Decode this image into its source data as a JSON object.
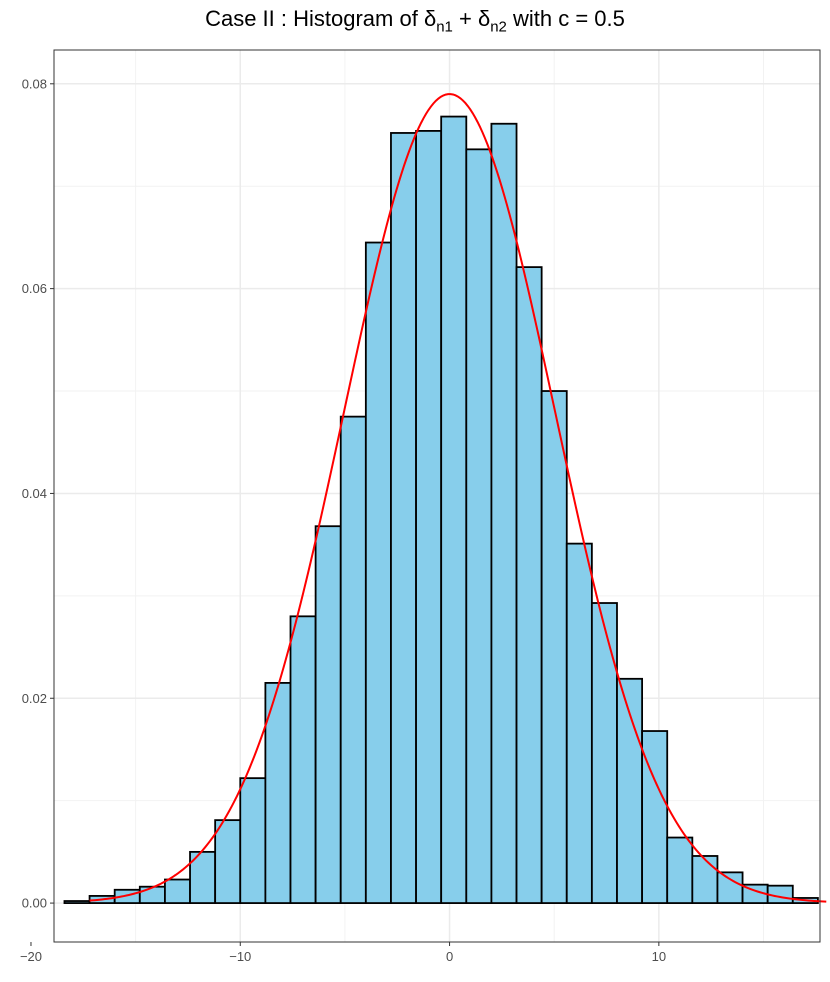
{
  "title": {
    "prefix": "Case II : Histogram of ",
    "delta": "δ",
    "sub1": "n1",
    "plus": " + ",
    "sub2": "n2",
    "suffix": " with c = 0.5"
  },
  "chart_data": {
    "type": "bar",
    "title": "Case II : Histogram of δn1 + δn2 with c = 0.5",
    "xlabel": "",
    "ylabel": "",
    "xlim": [
      -18.9,
      17.7
    ],
    "ylim": [
      -0.0038,
      0.0833
    ],
    "xticks": [
      -20,
      -10,
      0,
      10
    ],
    "xtick_labels": [
      "−20",
      "−10",
      "0",
      "10"
    ],
    "yticks": [
      0.0,
      0.02,
      0.04,
      0.06,
      0.08
    ],
    "ytick_labels": [
      "0.00",
      "0.02",
      "0.04",
      "0.06",
      "0.08"
    ],
    "grid": true,
    "bin_width": 1.2,
    "bin_start": -18.4,
    "values": [
      0.0002,
      0.0007,
      0.0013,
      0.0016,
      0.0023,
      0.005,
      0.0081,
      0.0122,
      0.0215,
      0.028,
      0.0368,
      0.0475,
      0.0645,
      0.0752,
      0.0754,
      0.0768,
      0.0736,
      0.0761,
      0.0621,
      0.05,
      0.0351,
      0.0293,
      0.0219,
      0.0168,
      0.0064,
      0.0046,
      0.003,
      0.0018,
      0.0017,
      0.0005
    ],
    "bar_fill": "#87ceeb",
    "bar_stroke": "#000000",
    "density_curve": {
      "name": "normal density",
      "mean": 0.0,
      "sd": 5.05,
      "color": "#ff0000"
    }
  }
}
